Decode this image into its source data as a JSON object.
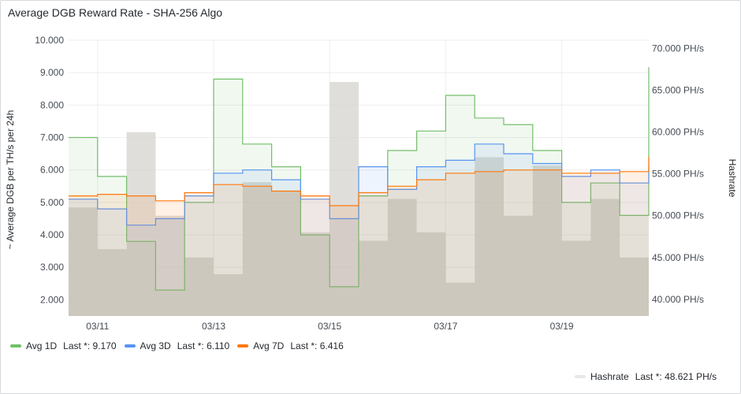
{
  "panel": {
    "title": "Average DGB Reward Rate - SHA-256 Algo"
  },
  "chart_data": {
    "type": "line",
    "title": "Average DGB Reward Rate - SHA-256 Algo",
    "ylabel": "~ Average DGB per TH/s per 24h",
    "y2label": "Hashrate",
    "ylim": [
      1500,
      10000
    ],
    "y2lim": [
      38000,
      71000
    ],
    "yticks": [
      "2.000",
      "3.000",
      "4.000",
      "5.000",
      "6.000",
      "7.000",
      "8.000",
      "9.000",
      "10.000"
    ],
    "y2ticks": [
      "40.000 PH/s",
      "45.000 PH/s",
      "50.000 PH/s",
      "55.000 PH/s",
      "60.000 PH/s",
      "65.000 PH/s",
      "70.000 PH/s"
    ],
    "xticks": [
      "03/11",
      "03/13",
      "03/15",
      "03/17",
      "03/19"
    ],
    "x": [
      "03/10 12:00",
      "03/11 00:00",
      "03/11 12:00",
      "03/12 00:00",
      "03/12 12:00",
      "03/13 00:00",
      "03/13 12:00",
      "03/14 00:00",
      "03/14 12:00",
      "03/15 00:00",
      "03/15 12:00",
      "03/16 00:00",
      "03/16 12:00",
      "03/17 00:00",
      "03/17 12:00",
      "03/18 00:00",
      "03/18 12:00",
      "03/19 00:00",
      "03/19 12:00",
      "03/20 00:00",
      "03/20 12:00"
    ],
    "series": [
      {
        "name": "Avg 1D",
        "color": "#73bf69",
        "last_label": "Last *:",
        "last": "9.170",
        "values": [
          7000,
          5800,
          3800,
          2300,
          5000,
          8800,
          6800,
          6100,
          4000,
          2400,
          5200,
          6600,
          7200,
          8300,
          7600,
          7400,
          6600,
          5000,
          5600,
          4600,
          9170
        ]
      },
      {
        "name": "Avg 3D",
        "color": "#5794f2",
        "last_label": "Last *:",
        "last": "6.110",
        "values": [
          5100,
          4800,
          4300,
          4500,
          5200,
          5900,
          6000,
          5700,
          5100,
          4500,
          6100,
          5400,
          6100,
          6300,
          6800,
          6500,
          6200,
          5800,
          6000,
          5600,
          6110
        ]
      },
      {
        "name": "Avg 7D",
        "color": "#ff780a",
        "last_label": "Last *:",
        "last": "6.416",
        "values": [
          5200,
          5250,
          5200,
          5050,
          5300,
          5550,
          5500,
          5350,
          5200,
          4900,
          5300,
          5500,
          5700,
          5900,
          5950,
          6000,
          6000,
          5900,
          5900,
          5950,
          6416
        ]
      },
      {
        "name": "Hashrate",
        "axis": "right",
        "color": "#e5e5e5",
        "last_label": "Last *:",
        "last": "48.621 PH/s",
        "values": [
          51000,
          46000,
          60000,
          50000,
          45000,
          43000,
          54000,
          53000,
          48000,
          66000,
          47000,
          52000,
          48000,
          42000,
          57000,
          50000,
          56000,
          47000,
          52000,
          45000,
          48621
        ]
      }
    ],
    "legend": "bottom"
  }
}
